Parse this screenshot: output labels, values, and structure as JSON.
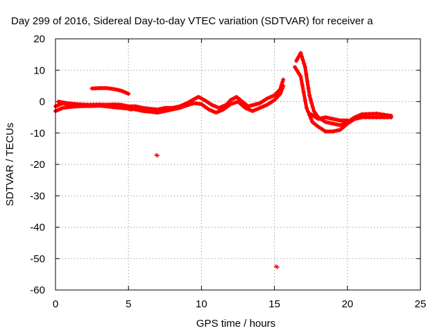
{
  "chart_data": {
    "type": "scatter",
    "title": "Day 299 of 2016, Sidereal Day-to-day VTEC variation (SDTVAR) for receiver a",
    "xlabel": "GPS time / hours",
    "ylabel": "SDTVAR / TECUs",
    "xlim": [
      0,
      25
    ],
    "ylim": [
      -60,
      20
    ],
    "xticks": [
      0,
      5,
      10,
      15,
      20,
      25
    ],
    "yticks": [
      -60,
      -50,
      -40,
      -30,
      -20,
      -10,
      0,
      10,
      20
    ],
    "grid": true,
    "marker": "+",
    "colors": {
      "series": "#ff0000",
      "grid": "#a0a0a0",
      "axis": "#000000"
    },
    "series": [
      {
        "tracks": [
          [
            [
              0.0,
              -1.5
            ],
            [
              0.5,
              -0.5
            ],
            [
              1.0,
              -1.0
            ],
            [
              1.5,
              -1.2
            ],
            [
              2.0,
              -1.3
            ],
            [
              2.5,
              -1.2
            ],
            [
              3.0,
              -1.0
            ],
            [
              3.5,
              -1.0
            ],
            [
              4.0,
              -0.9
            ],
            [
              4.5,
              -1.0
            ],
            [
              5.0,
              -1.5
            ],
            [
              5.5,
              -1.5
            ],
            [
              6.0,
              -2.0
            ],
            [
              6.5,
              -2.3
            ],
            [
              7.0,
              -2.5
            ],
            [
              7.5,
              -2.0
            ],
            [
              8.0,
              -2.0
            ],
            [
              8.5,
              -1.5
            ],
            [
              9.0,
              -0.5
            ],
            [
              9.5,
              0.8
            ],
            [
              9.8,
              1.5
            ],
            [
              10.2,
              0.5
            ],
            [
              10.7,
              -1.0
            ],
            [
              11.2,
              -2.0
            ],
            [
              11.7,
              -1.0
            ],
            [
              12.0,
              0.5
            ],
            [
              12.4,
              1.5
            ],
            [
              12.8,
              0.0
            ],
            [
              13.2,
              -1.5
            ],
            [
              13.6,
              -1.0
            ],
            [
              14.0,
              -0.5
            ],
            [
              14.5,
              1.0
            ],
            [
              15.0,
              2.0
            ],
            [
              15.4,
              4.0
            ],
            [
              15.6,
              7.0
            ]
          ],
          [
            [
              0.0,
              -3.0
            ],
            [
              0.5,
              -2.0
            ],
            [
              1.0,
              -1.7
            ],
            [
              1.5,
              -1.5
            ],
            [
              2.0,
              -1.4
            ],
            [
              2.5,
              -1.4
            ],
            [
              3.0,
              -1.3
            ],
            [
              3.5,
              -1.5
            ],
            [
              4.0,
              -1.8
            ],
            [
              4.5,
              -2.0
            ],
            [
              5.0,
              -2.2
            ],
            [
              5.5,
              -2.5
            ],
            [
              6.0,
              -3.0
            ],
            [
              6.5,
              -3.2
            ],
            [
              7.0,
              -3.5
            ],
            [
              7.5,
              -3.0
            ],
            [
              8.0,
              -2.5
            ],
            [
              8.5,
              -2.0
            ],
            [
              9.0,
              -1.2
            ],
            [
              9.5,
              -0.5
            ],
            [
              10.0,
              -0.8
            ],
            [
              10.5,
              -2.5
            ],
            [
              11.0,
              -3.5
            ],
            [
              11.5,
              -2.5
            ],
            [
              12.0,
              -0.8
            ],
            [
              12.5,
              0.0
            ],
            [
              13.0,
              -2.0
            ],
            [
              13.5,
              -3.0
            ],
            [
              14.0,
              -2.0
            ],
            [
              14.5,
              -1.0
            ],
            [
              15.0,
              0.5
            ],
            [
              15.4,
              2.5
            ],
            [
              15.6,
              5.0
            ]
          ],
          [
            [
              0.2,
              0.0
            ],
            [
              0.8,
              -0.5
            ],
            [
              1.5,
              -0.8
            ],
            [
              2.2,
              -1.0
            ],
            [
              3.0,
              -0.9
            ],
            [
              3.6,
              -1.2
            ],
            [
              4.2,
              -1.5
            ],
            [
              4.8,
              -2.0
            ],
            [
              5.2,
              -2.5
            ]
          ],
          [
            [
              2.5,
              4.2
            ],
            [
              3.0,
              4.3
            ],
            [
              3.5,
              4.3
            ],
            [
              4.0,
              4.0
            ],
            [
              4.5,
              3.5
            ],
            [
              5.0,
              2.5
            ]
          ],
          [
            [
              16.5,
              13.0
            ],
            [
              16.8,
              15.5
            ],
            [
              17.1,
              11.0
            ],
            [
              17.4,
              2.0
            ],
            [
              17.7,
              -3.0
            ],
            [
              18.0,
              -5.0
            ],
            [
              18.5,
              -6.5
            ],
            [
              19.0,
              -7.0
            ],
            [
              19.5,
              -7.5
            ],
            [
              20.0,
              -6.5
            ],
            [
              20.5,
              -5.0
            ],
            [
              21.0,
              -4.0
            ],
            [
              22.0,
              -3.8
            ],
            [
              23.0,
              -4.5
            ]
          ],
          [
            [
              16.4,
              11.0
            ],
            [
              16.8,
              8.0
            ],
            [
              17.2,
              -2.0
            ],
            [
              17.6,
              -6.5
            ],
            [
              18.0,
              -8.0
            ],
            [
              18.5,
              -9.5
            ],
            [
              19.0,
              -9.5
            ],
            [
              19.5,
              -9.0
            ],
            [
              20.0,
              -7.0
            ],
            [
              20.5,
              -5.5
            ],
            [
              21.0,
              -5.0
            ],
            [
              22.0,
              -5.0
            ],
            [
              23.0,
              -5.0
            ]
          ],
          [
            [
              17.5,
              -4.0
            ],
            [
              18.0,
              -5.5
            ],
            [
              18.5,
              -5.0
            ],
            [
              19.0,
              -5.5
            ],
            [
              19.5,
              -6.0
            ],
            [
              20.0,
              -6.0
            ]
          ]
        ],
        "points": [
          [
            6.9,
            -17.0
          ],
          [
            7.0,
            -17.2
          ],
          [
            15.1,
            -52.5
          ],
          [
            15.2,
            -52.7
          ]
        ]
      }
    ]
  }
}
